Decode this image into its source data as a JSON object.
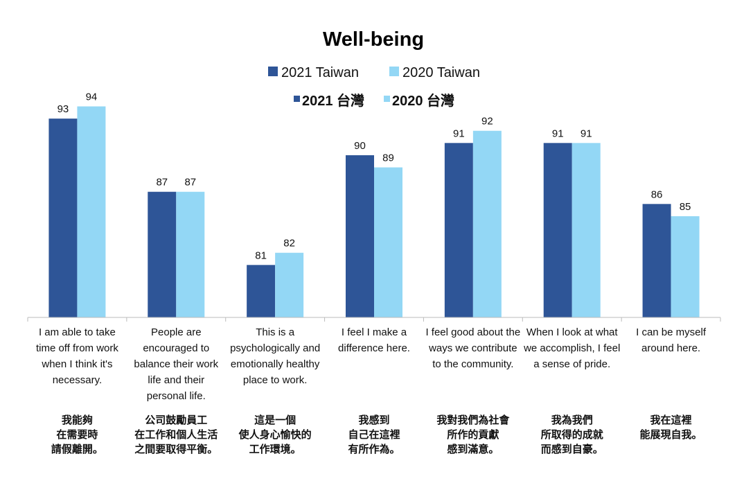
{
  "chart_data": {
    "type": "bar",
    "title": "Well-being",
    "legend": {
      "placement": "top",
      "entries_en": [
        "2021 Taiwan",
        "2020 Taiwan"
      ],
      "entries_zh": [
        "2021 台灣",
        "2020 台灣"
      ]
    },
    "categories": [
      "I am able to take time off from work when I think it's necessary.",
      "People are encouraged to balance their work life and their personal life.",
      "This is a psychologically and emotionally healthy place to work.",
      "I feel I make a difference here.",
      "I feel good about the ways we contribute to the community.",
      "When I look at what we accomplish, I feel a sense of pride.",
      "I can be myself around here."
    ],
    "categories_zh": [
      [
        "我能夠",
        "在需要時",
        "請假離開。"
      ],
      [
        "公司鼓勵員工",
        "在工作和個人生活",
        "之間要取得平衡。"
      ],
      [
        "這是一個",
        "使人身心愉快的",
        "工作環境。"
      ],
      [
        "我感到",
        "自己在這裡",
        "有所作為。"
      ],
      [
        "我對我們為社會",
        "所作的貢獻",
        "感到滿意。"
      ],
      [
        "我為我們",
        "所取得的成就",
        "而感到自豪。"
      ],
      [
        "我在這裡",
        "能展現自我。"
      ]
    ],
    "series": [
      {
        "name": "2021 Taiwan",
        "color": "#2e5597",
        "values": [
          93,
          87,
          81,
          90,
          91,
          91,
          86
        ]
      },
      {
        "name": "2020 Taiwan",
        "color": "#93d7f5",
        "values": [
          94,
          87,
          82,
          89,
          92,
          91,
          85
        ]
      }
    ],
    "ylim": [
      76.7,
      100
    ],
    "grid": false,
    "y_axis_visible": false
  }
}
